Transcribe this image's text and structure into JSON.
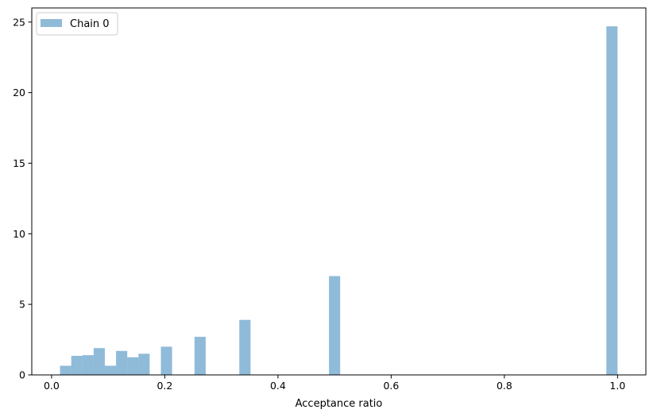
{
  "chart_data": {
    "type": "bar",
    "subtype": "histogram",
    "title": "",
    "xlabel": "Acceptance ratio",
    "ylabel": "",
    "xlim": [
      -0.035,
      1.05
    ],
    "ylim": [
      0,
      26
    ],
    "xticks": [
      0.0,
      0.2,
      0.4,
      0.6,
      0.8,
      1.0
    ],
    "xtick_labels": [
      "0.0",
      "0.2",
      "0.4",
      "0.6",
      "0.8",
      "1.0"
    ],
    "yticks": [
      0,
      5,
      10,
      15,
      20,
      25
    ],
    "ytick_labels": [
      "0",
      "5",
      "10",
      "15",
      "20",
      "25"
    ],
    "grid": false,
    "legend_position": "top-left",
    "bin_width": 0.0198,
    "series": [
      {
        "name": "Chain 0",
        "color": "#1f77b4",
        "alpha": 0.5,
        "bins": [
          {
            "x0": 0.0149,
            "x1": 0.0347,
            "value": 0.65
          },
          {
            "x0": 0.0347,
            "x1": 0.0545,
            "value": 1.35
          },
          {
            "x0": 0.0545,
            "x1": 0.0743,
            "value": 1.4
          },
          {
            "x0": 0.0743,
            "x1": 0.0941,
            "value": 1.9
          },
          {
            "x0": 0.0941,
            "x1": 0.1139,
            "value": 0.65
          },
          {
            "x0": 0.1139,
            "x1": 0.1337,
            "value": 1.7
          },
          {
            "x0": 0.1337,
            "x1": 0.1535,
            "value": 1.25
          },
          {
            "x0": 0.1535,
            "x1": 0.1733,
            "value": 1.5
          },
          {
            "x0": 0.1931,
            "x1": 0.2129,
            "value": 2.0
          },
          {
            "x0": 0.2525,
            "x1": 0.2723,
            "value": 2.7
          },
          {
            "x0": 0.3317,
            "x1": 0.3515,
            "value": 3.9
          },
          {
            "x0": 0.4901,
            "x1": 0.5099,
            "value": 7.0
          },
          {
            "x0": 0.9802,
            "x1": 1.0,
            "value": 24.7
          }
        ]
      }
    ]
  }
}
